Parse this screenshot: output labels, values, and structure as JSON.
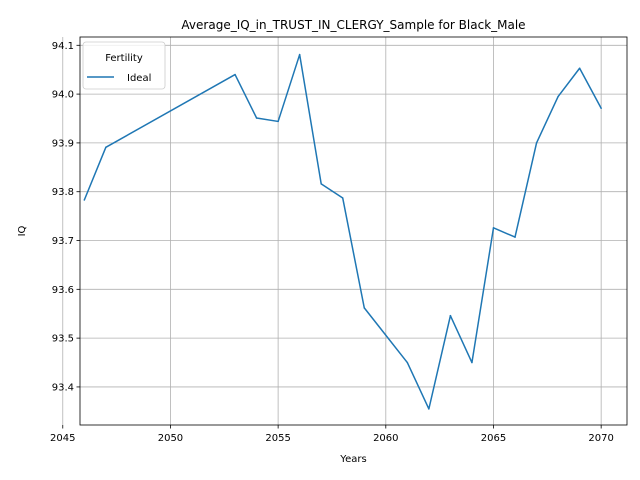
{
  "chart_data": {
    "type": "line",
    "title": "Average_IQ_in_TRUST_IN_CLERGY_Sample for Black_Male",
    "xlabel": "Years",
    "ylabel": "IQ",
    "xlim": [
      2045.8,
      2071.2
    ],
    "ylim": [
      93.322,
      94.117
    ],
    "xticks": [
      2045,
      2050,
      2055,
      2060,
      2065,
      2070
    ],
    "yticks": [
      93.4,
      93.5,
      93.6,
      93.7,
      93.8,
      93.9,
      94.0,
      94.1
    ],
    "grid": true,
    "legend": {
      "title": "Fertility",
      "placement": "top-left"
    },
    "series": [
      {
        "name": "Ideal",
        "color": "#1f77b4",
        "x": [
          2046,
          2047,
          2053,
          2054,
          2055,
          2056,
          2057,
          2058,
          2059,
          2061,
          2062,
          2063,
          2064,
          2065,
          2066,
          2067,
          2068,
          2069,
          2070
        ],
        "y": [
          93.783,
          93.891,
          94.04,
          93.951,
          93.944,
          94.081,
          93.816,
          93.787,
          93.562,
          93.45,
          93.355,
          93.546,
          93.45,
          93.726,
          93.707,
          93.9,
          93.995,
          94.053,
          93.971
        ]
      }
    ]
  }
}
